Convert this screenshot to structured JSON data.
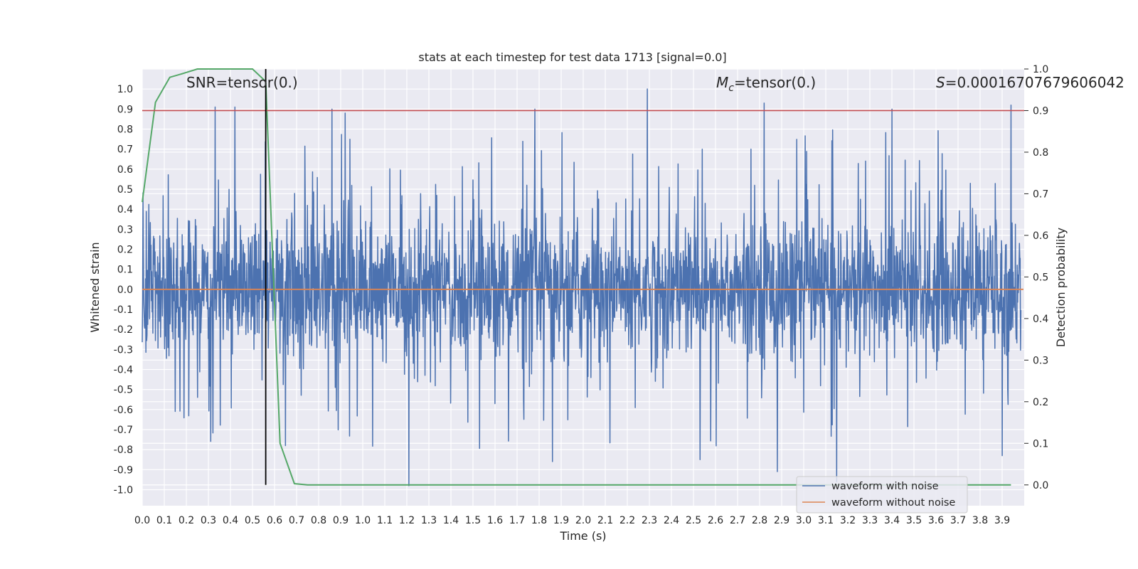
{
  "chart_data": {
    "type": "line",
    "title": "stats at each timestep for test data 1713 [signal=0.0]",
    "xlabel": "Time (s)",
    "ylabel_left": "Whitened strain",
    "ylabel_right": "Detection probability",
    "xlim": [
      0.0,
      4.0
    ],
    "ylim_left": [
      -1.08,
      1.1
    ],
    "ylim_right": [
      -0.05,
      1.0
    ],
    "x_ticks": [
      "0.0",
      "0.1",
      "0.2",
      "0.3",
      "0.4",
      "0.5",
      "0.6",
      "0.7",
      "0.8",
      "0.9",
      "1.0",
      "1.1",
      "1.2",
      "1.3",
      "1.4",
      "1.5",
      "1.6",
      "1.7",
      "1.8",
      "1.9",
      "2.0",
      "2.1",
      "2.2",
      "2.3",
      "2.4",
      "2.5",
      "2.6",
      "2.7",
      "2.8",
      "2.9",
      "3.0",
      "3.1",
      "3.2",
      "3.3",
      "3.4",
      "3.5",
      "3.6",
      "3.7",
      "3.8",
      "3.9"
    ],
    "y_ticks_left": [
      "-1.0",
      "-0.9",
      "-0.8",
      "-0.7",
      "-0.6",
      "-0.5",
      "-0.4",
      "-0.3",
      "-0.2",
      "-0.1",
      "0.0",
      "0.1",
      "0.2",
      "0.3",
      "0.4",
      "0.5",
      "0.6",
      "0.7",
      "0.8",
      "0.9",
      "1.0"
    ],
    "y_ticks_right": [
      "0.0",
      "0.1",
      "0.2",
      "0.3",
      "0.4",
      "0.5",
      "0.6",
      "0.7",
      "0.8",
      "0.9",
      "1.0"
    ],
    "annotations": {
      "snr": "SNR=tensor(0.)",
      "mc_symbol": "M",
      "mc_sub": "c",
      "mc_value": "=tensor(0.)",
      "s_symbol": "S",
      "s_value": "=0.00016707679606042"
    },
    "threshold": {
      "axis": "right",
      "value": 0.9,
      "color": "#c44e52"
    },
    "vline_x": 0.56,
    "series": [
      {
        "name": "waveform with noise",
        "axis": "left",
        "color": "#4c72b0",
        "kind": "noise",
        "approx_amplitude": {
          "typical_max": 0.4,
          "peak_max": 1.0,
          "peak_min": -0.98
        },
        "notable_peaks": [
          {
            "x": 2.29,
            "y": 1.0
          },
          {
            "x": 2.82,
            "y": 0.93
          },
          {
            "x": 3.94,
            "y": 0.92
          },
          {
            "x": 0.33,
            "y": 0.91
          },
          {
            "x": 0.42,
            "y": 0.91
          },
          {
            "x": 0.86,
            "y": 0.9
          },
          {
            "x": 1.78,
            "y": 0.9
          },
          {
            "x": 3.4,
            "y": 0.9
          },
          {
            "x": 0.92,
            "y": 0.88
          },
          {
            "x": 1.21,
            "y": -0.98
          },
          {
            "x": 3.15,
            "y": -0.96
          },
          {
            "x": 2.88,
            "y": -0.91
          },
          {
            "x": 2.53,
            "y": -0.85
          },
          {
            "x": 1.86,
            "y": -0.86
          },
          {
            "x": 3.9,
            "y": -0.83
          }
        ]
      },
      {
        "name": "waveform without noise",
        "axis": "left",
        "color": "#dd8452",
        "x": [
          0.0,
          4.0
        ],
        "y": [
          0.0,
          0.0
        ]
      },
      {
        "name": "detection probability",
        "axis": "right",
        "color": "#55a868",
        "x": [
          0.0,
          0.06,
          0.125,
          0.19,
          0.25,
          0.31,
          0.375,
          0.44,
          0.5,
          0.56,
          0.625,
          0.69,
          0.75,
          0.81,
          1.0,
          2.0,
          3.0,
          3.94
        ],
        "y": [
          0.68,
          0.92,
          0.98,
          0.99,
          1.0,
          1.0,
          1.0,
          1.0,
          1.0,
          0.97,
          0.1,
          0.003,
          0.0,
          0.0,
          0.0,
          0.0,
          0.0,
          0.0
        ]
      }
    ],
    "legend": {
      "position": "lower-right",
      "entries": [
        {
          "label": "waveform with noise",
          "color": "#4c72b0"
        },
        {
          "label": "waveform without noise",
          "color": "#dd8452"
        }
      ]
    }
  }
}
